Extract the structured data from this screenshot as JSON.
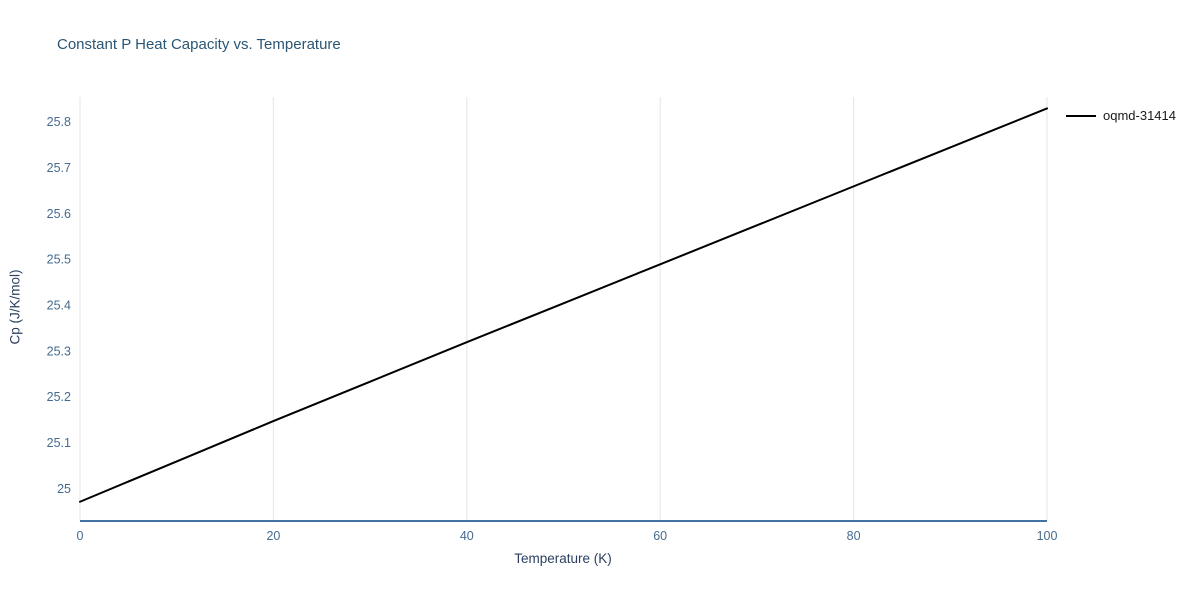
{
  "page": {
    "background": "#ffffff"
  },
  "colors": {
    "title": "#2a5674",
    "axis_label": "#2a3f5f",
    "tick_label": "#466b8f",
    "axis_line": "#4272a4",
    "gridline": "#e5e5e5",
    "line": "#000000",
    "legend_text": "#1a1a1a"
  },
  "chart_data": {
    "type": "line",
    "title": "Constant P Heat Capacity vs. Temperature",
    "xlabel": "Temperature (K)",
    "ylabel": "Cp (J/K/mol)",
    "xlim": [
      0,
      100
    ],
    "ylim": [
      24.93,
      25.855
    ],
    "x_ticks": [
      0,
      20,
      40,
      60,
      80,
      100
    ],
    "x_tick_labels": [
      "0",
      "20",
      "40",
      "60",
      "80",
      "100"
    ],
    "y_ticks": [
      25,
      25.1,
      25.2,
      25.3,
      25.4,
      25.5,
      25.6,
      25.7,
      25.8
    ],
    "y_tick_labels": [
      "25",
      "25.1",
      "25.2",
      "25.3",
      "25.4",
      "25.5",
      "25.6",
      "25.7",
      "25.8"
    ],
    "grid": "vertical-only",
    "legend_position": "top-right-outside",
    "series": [
      {
        "name": "oqmd-31414",
        "color": "#000000",
        "x": [
          0,
          10,
          20,
          30,
          40,
          50,
          60,
          70,
          80,
          90,
          100
        ],
        "y": [
          24.972,
          25.06,
          25.148,
          25.234,
          25.32,
          25.405,
          25.49,
          25.575,
          25.66,
          25.745,
          25.83
        ]
      }
    ]
  }
}
